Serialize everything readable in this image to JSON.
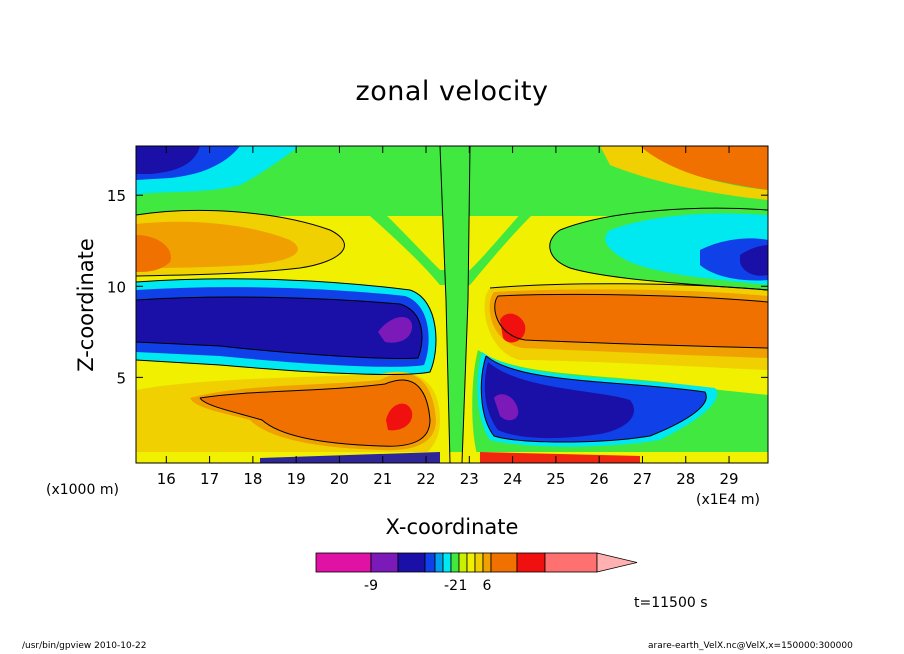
{
  "chart_data": {
    "type": "heatmap",
    "title": "zonal velocity",
    "xlabel": "X-coordinate",
    "ylabel": "Z-coordinate",
    "x_unit_left": "(x1000 m)",
    "x_unit_right": "(x1E4 m)",
    "xlim": [
      15.3,
      29.9
    ],
    "ylim": [
      0.3,
      17.7
    ],
    "x_ticks": [
      16,
      17,
      18,
      19,
      20,
      21,
      22,
      23,
      24,
      25,
      26,
      27,
      28,
      29
    ],
    "y_ticks": [
      5,
      10,
      15
    ],
    "grid": false,
    "colorbar": {
      "colors": [
        "#e012a6",
        "#7b1ab8",
        "#1a10a8",
        "#1040e8",
        "#00a0f0",
        "#00e8f0",
        "#40e840",
        "#c8f000",
        "#f0f000",
        "#f0d000",
        "#f0a000",
        "#f07000",
        "#f01010",
        "#ff7070",
        "#ffb0b0"
      ],
      "tick_labels": [
        {
          "label": "-9",
          "index": 1
        },
        {
          "label": "-2",
          "index": 6
        },
        {
          "label": "1",
          "index": 7.5
        },
        {
          "label": "6",
          "index": 10.5
        }
      ]
    },
    "features": [
      {
        "name": "upper-left easterly core",
        "x": [
          15.3,
          22.0
        ],
        "z": [
          6.3,
          9.2
        ],
        "value": -9
      },
      {
        "name": "upper-right westerly core",
        "x": [
          23.3,
          29.9
        ],
        "z": [
          6.3,
          9.5
        ],
        "value": 6
      },
      {
        "name": "lower-left westerly core",
        "x": [
          17.8,
          22.0
        ],
        "z": [
          1.0,
          4.8
        ],
        "value": 6
      },
      {
        "name": "lower-right easterly core",
        "x": [
          23.3,
          27.6
        ],
        "z": [
          1.0,
          6.5
        ],
        "value": -9
      },
      {
        "name": "upper-left surface jet",
        "x": [
          15.3,
          18.9
        ],
        "z": [
          10.0,
          12.5
        ],
        "value": 4
      },
      {
        "name": "upper-right surface jet",
        "x": [
          26.3,
          29.9
        ],
        "z": [
          9.5,
          13.5
        ],
        "value": -4
      }
    ]
  },
  "annotations": {
    "time": "t=11500 s",
    "footer_left": "/usr/bin/gpview   2010-10-22",
    "footer_right": "arare-earth_VelX.nc@VelX,x=150000:300000"
  }
}
